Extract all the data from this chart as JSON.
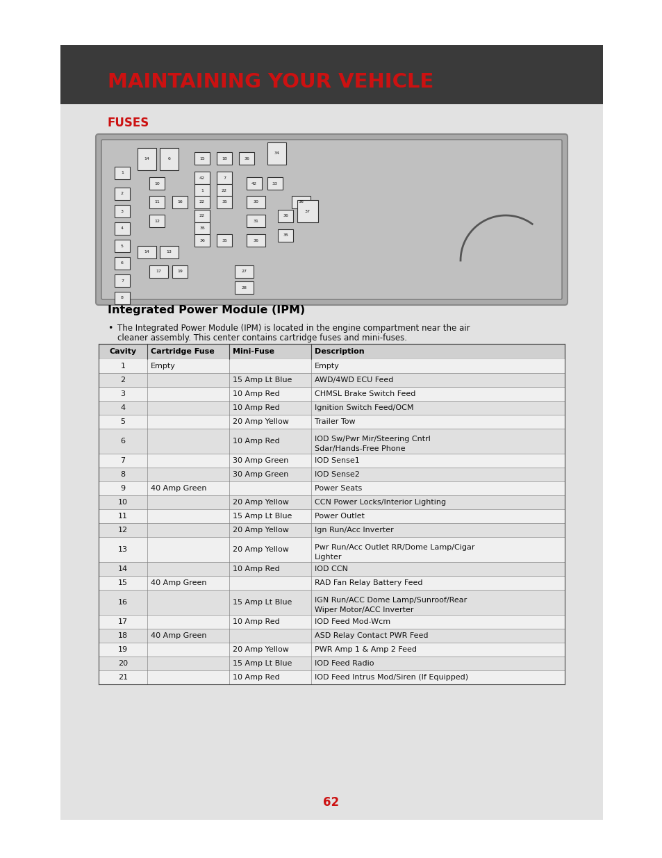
{
  "page_bg": "#ffffff",
  "content_bg": "#e2e2e2",
  "header_bg": "#3a3a3a",
  "header_text": "MAINTAINING YOUR VEHICLE",
  "header_text_color": "#cc1111",
  "section_title": "FUSES",
  "section_title_color": "#cc1111",
  "ipm_title": "Integrated Power Module (IPM)",
  "ipm_bullet": "The Integrated Power Module (IPM) is located in the engine compartment near the air\ncleaner assembly. This center contains cartridge fuses and mini-fuses.",
  "table_headers": [
    "Cavity",
    "Cartridge Fuse",
    "Mini-Fuse",
    "Description"
  ],
  "table_data": [
    [
      "1",
      "Empty",
      "",
      "Empty"
    ],
    [
      "2",
      "",
      "15 Amp Lt Blue",
      "AWD/4WD ECU Feed"
    ],
    [
      "3",
      "",
      "10 Amp Red",
      "CHMSL Brake Switch Feed"
    ],
    [
      "4",
      "",
      "10 Amp Red",
      "Ignition Switch Feed/OCM"
    ],
    [
      "5",
      "",
      "20 Amp Yellow",
      "Trailer Tow"
    ],
    [
      "6",
      "",
      "10 Amp Red",
      "IOD Sw/Pwr Mir/Steering Cntrl\nSdar/Hands-Free Phone"
    ],
    [
      "7",
      "",
      "30 Amp Green",
      "IOD Sense1"
    ],
    [
      "8",
      "",
      "30 Amp Green",
      "IOD Sense2"
    ],
    [
      "9",
      "40 Amp Green",
      "",
      "Power Seats"
    ],
    [
      "10",
      "",
      "20 Amp Yellow",
      "CCN Power Locks/Interior Lighting"
    ],
    [
      "11",
      "",
      "15 Amp Lt Blue",
      "Power Outlet"
    ],
    [
      "12",
      "",
      "20 Amp Yellow",
      "Ign Run/Acc Inverter"
    ],
    [
      "13",
      "",
      "20 Amp Yellow",
      "Pwr Run/Acc Outlet RR/Dome Lamp/Cigar\nLighter"
    ],
    [
      "14",
      "",
      "10 Amp Red",
      "IOD CCN"
    ],
    [
      "15",
      "40 Amp Green",
      "",
      "RAD Fan Relay Battery Feed"
    ],
    [
      "16",
      "",
      "15 Amp Lt Blue",
      "IGN Run/ACC Dome Lamp/Sunroof/Rear\nWiper Motor/ACC Inverter"
    ],
    [
      "17",
      "",
      "10 Amp Red",
      "IOD Feed Mod-Wcm"
    ],
    [
      "18",
      "40 Amp Green",
      "",
      "ASD Relay Contact PWR Feed"
    ],
    [
      "19",
      "",
      "20 Amp Yellow",
      "PWR Amp 1 & Amp 2 Feed"
    ],
    [
      "20",
      "",
      "15 Amp Lt Blue",
      "IOD Feed Radio"
    ],
    [
      "21",
      "",
      "10 Amp Red",
      "IOD Feed Intrus Mod/Siren (If Equipped)"
    ]
  ],
  "page_number": "62"
}
